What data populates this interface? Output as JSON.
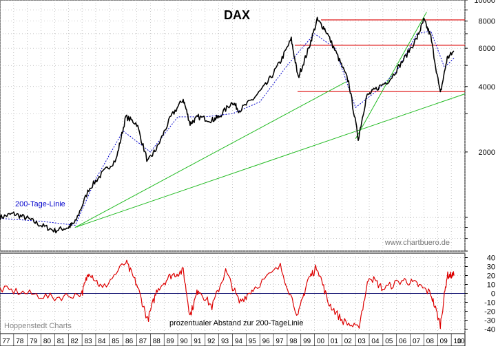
{
  "chart_data": [
    {
      "type": "line",
      "title": "DAX",
      "scale": "log",
      "ylim": [
        700,
        10000
      ],
      "yticks": [
        2000,
        4000,
        6000,
        8000,
        10000
      ],
      "grid": true,
      "legend": "200-Tage-Linie",
      "watermark": "www.chartbuero.de",
      "colors": {
        "price": "#000000",
        "ma200": "#0000cc",
        "support_resistance": "#dd0000",
        "trendline": "#22bb22"
      },
      "series": [
        {
          "name": "DAX",
          "x": [
            1977.0,
            1978.0,
            1979.0,
            1980.0,
            1981.0,
            1982.0,
            1982.5,
            1983.5,
            1984.5,
            1985.5,
            1986.2,
            1987.0,
            1987.8,
            1988.5,
            1989.5,
            1990.4,
            1990.9,
            1991.5,
            1992.5,
            1993.0,
            1994.0,
            1994.5,
            1995.5,
            1996.5,
            1997.5,
            1998.3,
            1998.8,
            1999.5,
            2000.2,
            2000.8,
            2001.7,
            2002.5,
            2003.2,
            2003.8,
            2004.5,
            2005.5,
            2006.5,
            2007.5,
            2008.0,
            2008.5,
            2009.2,
            2009.7,
            2010.2
          ],
          "values": [
            1000,
            1040,
            990,
            920,
            870,
            900,
            950,
            1350,
            1600,
            1850,
            2900,
            2700,
            1800,
            2100,
            2900,
            3500,
            2700,
            2900,
            2800,
            2900,
            3400,
            3100,
            3500,
            4100,
            5200,
            6600,
            4400,
            5800,
            8100,
            7300,
            5500,
            4200,
            2300,
            3600,
            3900,
            4300,
            5300,
            6700,
            8100,
            6800,
            3700,
            5400,
            5800
          ]
        },
        {
          "name": "200-Tage-Linie",
          "x": [
            1977.0,
            1980.0,
            1982.5,
            1984.0,
            1986.0,
            1988.0,
            1990.0,
            1992.0,
            1994.0,
            1996.0,
            1998.0,
            2000.0,
            2001.5,
            2003.0,
            2004.5,
            2006.0,
            2007.5,
            2008.5,
            2009.5,
            2010.2
          ],
          "values": [
            990,
            960,
            920,
            1500,
            2500,
            2000,
            2900,
            2900,
            3000,
            3400,
            5000,
            7000,
            6000,
            3200,
            3800,
            4700,
            7000,
            7200,
            4900,
            5400
          ]
        }
      ],
      "horizontal_lines": [
        8100,
        6200,
        3800
      ],
      "trendlines": [
        {
          "x": [
            1982.5,
            2002.3
          ],
          "values": [
            900,
            4200
          ]
        },
        {
          "x": [
            1982.5,
            2011.0
          ],
          "values": [
            900,
            3700
          ]
        },
        {
          "x": [
            2003.0,
            2008.2
          ],
          "values": [
            2300,
            8800
          ]
        }
      ]
    },
    {
      "type": "line",
      "title": "prozentualer Abstand zur 200-TageLinie",
      "ylim": [
        -45,
        45
      ],
      "yticks": [
        -40,
        -30,
        -20,
        -10,
        0,
        10,
        20,
        30,
        40
      ],
      "grid": true,
      "colors": {
        "series": "#dd0000",
        "zero": "#000066"
      },
      "series": [
        {
          "name": "prozentualer Abstand zur 200-TageLinie",
          "x": [
            1977.0,
            1979.0,
            1981.0,
            1983.0,
            1983.5,
            1984.5,
            1986.2,
            1987.0,
            1987.8,
            1988.5,
            1989.5,
            1990.4,
            1990.9,
            1991.5,
            1992.5,
            1993.5,
            1994.5,
            1995.5,
            1997.5,
            1998.8,
            1999.5,
            2000.2,
            2001.0,
            2002.0,
            2003.2,
            2004.0,
            2005.0,
            2006.5,
            2007.5,
            2008.5,
            2009.2,
            2009.7,
            2010.2
          ],
          "values": [
            5,
            0,
            -5,
            0,
            25,
            5,
            35,
            10,
            -30,
            5,
            20,
            25,
            -25,
            5,
            -15,
            25,
            -10,
            5,
            30,
            -25,
            15,
            30,
            -10,
            -30,
            -40,
            20,
            5,
            15,
            10,
            0,
            -35,
            20,
            20
          ]
        }
      ],
      "categories": [
        "77",
        "78",
        "79",
        "80",
        "81",
        "82",
        "83",
        "84",
        "85",
        "86",
        "87",
        "88",
        "89",
        "90",
        "91",
        "92",
        "93",
        "94",
        "95",
        "96",
        "97",
        "98",
        "99",
        "00",
        "01",
        "02",
        "03",
        "04",
        "05",
        "06",
        "07",
        "08",
        "09",
        "10",
        "10"
      ]
    }
  ],
  "footer": {
    "left": "Hoppenstedt Charts",
    "center": "prozentualer Abstand zur 200-TageLinie"
  }
}
